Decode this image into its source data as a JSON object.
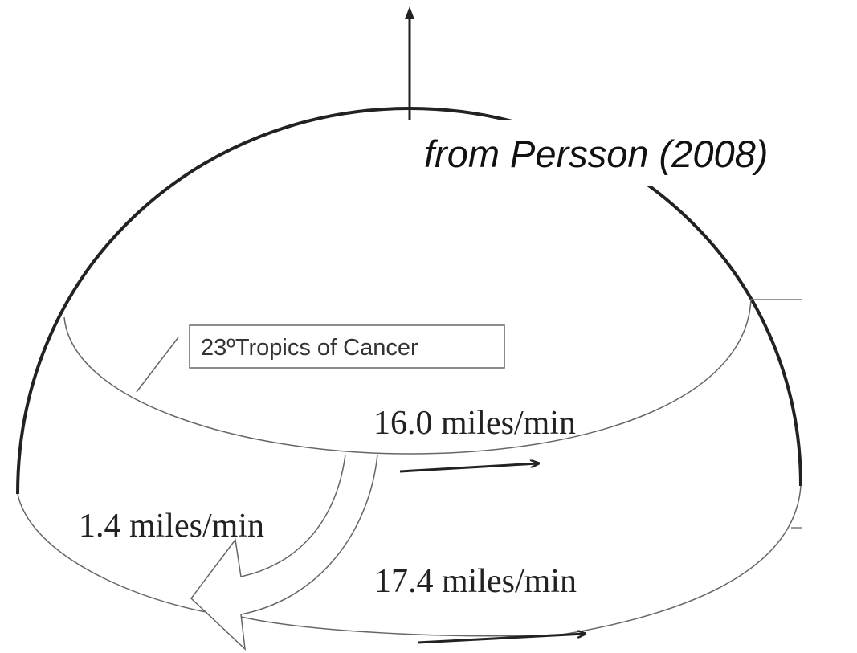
{
  "source": "from Persson (2008)",
  "box_label": "23ºTropics of Cancer",
  "labels": [
    "16.0 miles/min",
    "1.4 miles/min",
    "17.4 miles/min"
  ]
}
